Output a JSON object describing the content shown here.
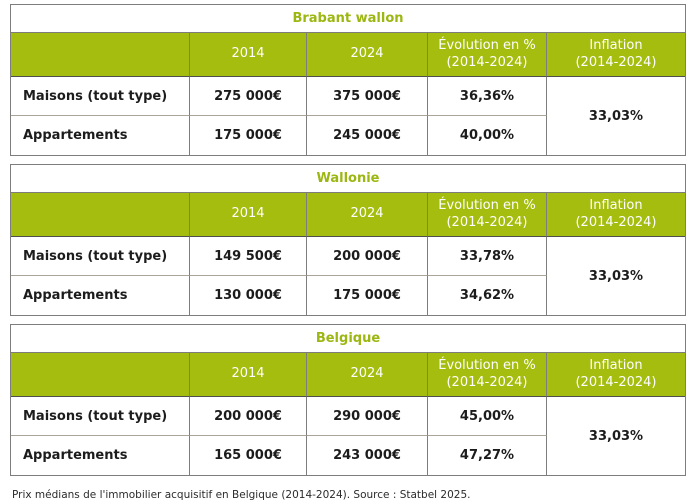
{
  "caption": "Prix médians de l'immobilier acquisitif en Belgique (2014-2024). Source : Statbel 2025.",
  "header": {
    "y2014": "2014",
    "y2024": "2024",
    "evolution_line1": "Évolution en %",
    "evolution_line2": "(2014-2024)",
    "inflation_line1": "Inflation",
    "inflation_line2": "(2014-2024)"
  },
  "colors": {
    "header_green": "#a4bd0e",
    "title_green": "#9cb712",
    "border_gray": "#7d7d7d",
    "row_divider": "#aba49b",
    "header_text": "#ffffff",
    "body_text": "#1c1c1c"
  },
  "chart_data": [
    {
      "type": "table",
      "title": "Brabant wallon",
      "columns": [
        "",
        "2014",
        "2024",
        "Évolution en % (2014-2024)",
        "Inflation (2014-2024)"
      ],
      "rows": [
        {
          "label": "Maisons (tout type)",
          "price_2014": "275 000€",
          "price_2024": "375 000€",
          "evolution": "36,36%"
        },
        {
          "label": "Appartements",
          "price_2014": "175 000€",
          "price_2024": "245 000€",
          "evolution": "40,00%"
        }
      ],
      "inflation": "33,03%"
    },
    {
      "type": "table",
      "title": "Wallonie",
      "columns": [
        "",
        "2014",
        "2024",
        "Évolution en % (2014-2024)",
        "Inflation (2014-2024)"
      ],
      "rows": [
        {
          "label": "Maisons (tout type)",
          "price_2014": "149 500€",
          "price_2024": "200 000€",
          "evolution": "33,78%"
        },
        {
          "label": "Appartements",
          "price_2014": "130 000€",
          "price_2024": "175 000€",
          "evolution": "34,62%"
        }
      ],
      "inflation": "33,03%"
    },
    {
      "type": "table",
      "title": "Belgique",
      "columns": [
        "",
        "2014",
        "2024",
        "Évolution en % (2014-2024)",
        "Inflation (2014-2024)"
      ],
      "rows": [
        {
          "label": "Maisons (tout type)",
          "price_2014": "200 000€",
          "price_2024": "290 000€",
          "evolution": "45,00%"
        },
        {
          "label": "Appartements",
          "price_2014": "165 000€",
          "price_2024": "243 000€",
          "evolution": "47,27%"
        }
      ],
      "inflation": "33,03%"
    }
  ]
}
